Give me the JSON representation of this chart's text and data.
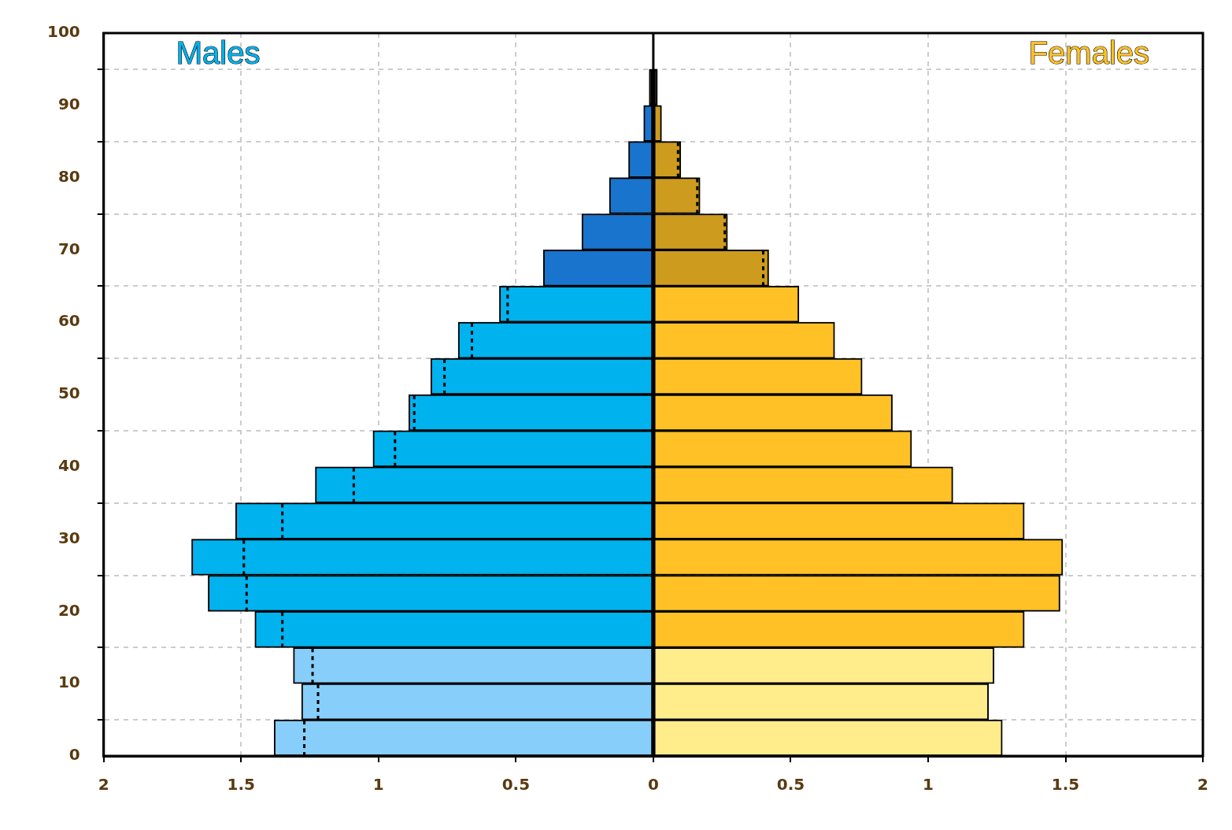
{
  "chart_data": {
    "type": "bar",
    "orientation": "horizontal",
    "x": [
      2.5,
      7.5,
      12.5,
      17.5,
      22.5,
      27.5,
      32.5,
      37.5,
      42.5,
      47.5,
      52.5,
      57.5,
      62.5,
      67.5,
      72.5,
      77.5,
      82.5,
      87.5,
      92.5
    ],
    "series": [
      {
        "name": "Males",
        "colors": [
          "#87cefa",
          "#87cefa",
          "#87cefa",
          "#00b2ee",
          "#00b2ee",
          "#00b2ee",
          "#00b2ee",
          "#00b2ee",
          "#00b2ee",
          "#00b2ee",
          "#00b2ee",
          "#00b2ee",
          "#00b2ee",
          "#1874cd",
          "#1874cd",
          "#1874cd",
          "#1874cd",
          "#1874cd",
          "#000000"
        ],
        "values": [
          -1.38,
          -1.28,
          -1.31,
          -1.45,
          -1.62,
          -1.68,
          -1.52,
          -1.23,
          -1.02,
          -0.89,
          -0.81,
          -0.71,
          -0.56,
          -0.4,
          -0.26,
          -0.16,
          -0.09,
          -0.035,
          -0.015
        ]
      },
      {
        "name": "Females",
        "colors": [
          "#ffec8b",
          "#ffec8b",
          "#ffec8b",
          "#ffc125",
          "#ffc125",
          "#ffc125",
          "#ffc125",
          "#ffc125",
          "#ffc125",
          "#ffc125",
          "#ffc125",
          "#ffc125",
          "#ffc125",
          "#cd9b1d",
          "#cd9b1d",
          "#cd9b1d",
          "#cd9b1d",
          "#cd9b1d",
          "#000000"
        ],
        "values": [
          1.27,
          1.22,
          1.24,
          1.35,
          1.48,
          1.49,
          1.35,
          1.09,
          0.94,
          0.87,
          0.76,
          0.66,
          0.53,
          0.42,
          0.27,
          0.17,
          0.1,
          0.03,
          0.015
        ]
      },
      {
        "type": "line",
        "line_style": "dotted",
        "color": "#000000",
        "x": [
          0,
          5,
          null,
          5,
          10,
          null,
          10,
          15,
          null,
          15,
          20,
          null,
          20,
          25,
          null,
          25,
          30,
          null,
          30,
          35,
          null,
          35,
          40,
          null,
          40,
          45,
          null,
          45,
          50,
          null,
          50,
          55,
          null,
          55,
          60,
          null,
          60,
          65
        ],
        "values": [
          -1.27,
          -1.27,
          null,
          -1.22,
          -1.22,
          null,
          -1.24,
          -1.24,
          null,
          -1.35,
          -1.35,
          null,
          -1.48,
          -1.48,
          null,
          -1.49,
          -1.49,
          null,
          -1.35,
          -1.35,
          null,
          -1.09,
          -1.09,
          null,
          -0.94,
          -0.94,
          null,
          -0.87,
          -0.87,
          null,
          -0.76,
          -0.76,
          null,
          -0.66,
          -0.66,
          null,
          -0.53,
          -0.53
        ]
      },
      {
        "type": "line",
        "line_style": "dotted",
        "color": "#000000",
        "x": [
          65,
          70,
          null,
          70,
          75,
          null,
          75,
          80,
          null,
          80,
          85
        ],
        "values": [
          0.4,
          0.4,
          null,
          0.26,
          0.26,
          null,
          0.16,
          0.16,
          null,
          0.09,
          0.09
        ]
      }
    ],
    "xlim": [
      -2,
      2
    ],
    "xticks": [
      {
        "value": -2,
        "label": "2"
      },
      {
        "value": -1.5,
        "label": "1.5"
      },
      {
        "value": -1,
        "label": "1"
      },
      {
        "value": -0.5,
        "label": "0.5"
      },
      0,
      0.5,
      1,
      1.5,
      2
    ],
    "ylim": [
      0,
      100
    ],
    "yticks": [
      0,
      10,
      20,
      30,
      40,
      50,
      60,
      70,
      80,
      90,
      100
    ],
    "ref_lines": [
      {
        "axis": "x",
        "value": 0
      }
    ],
    "stacked": true,
    "grid": true,
    "legend": false
  }
}
